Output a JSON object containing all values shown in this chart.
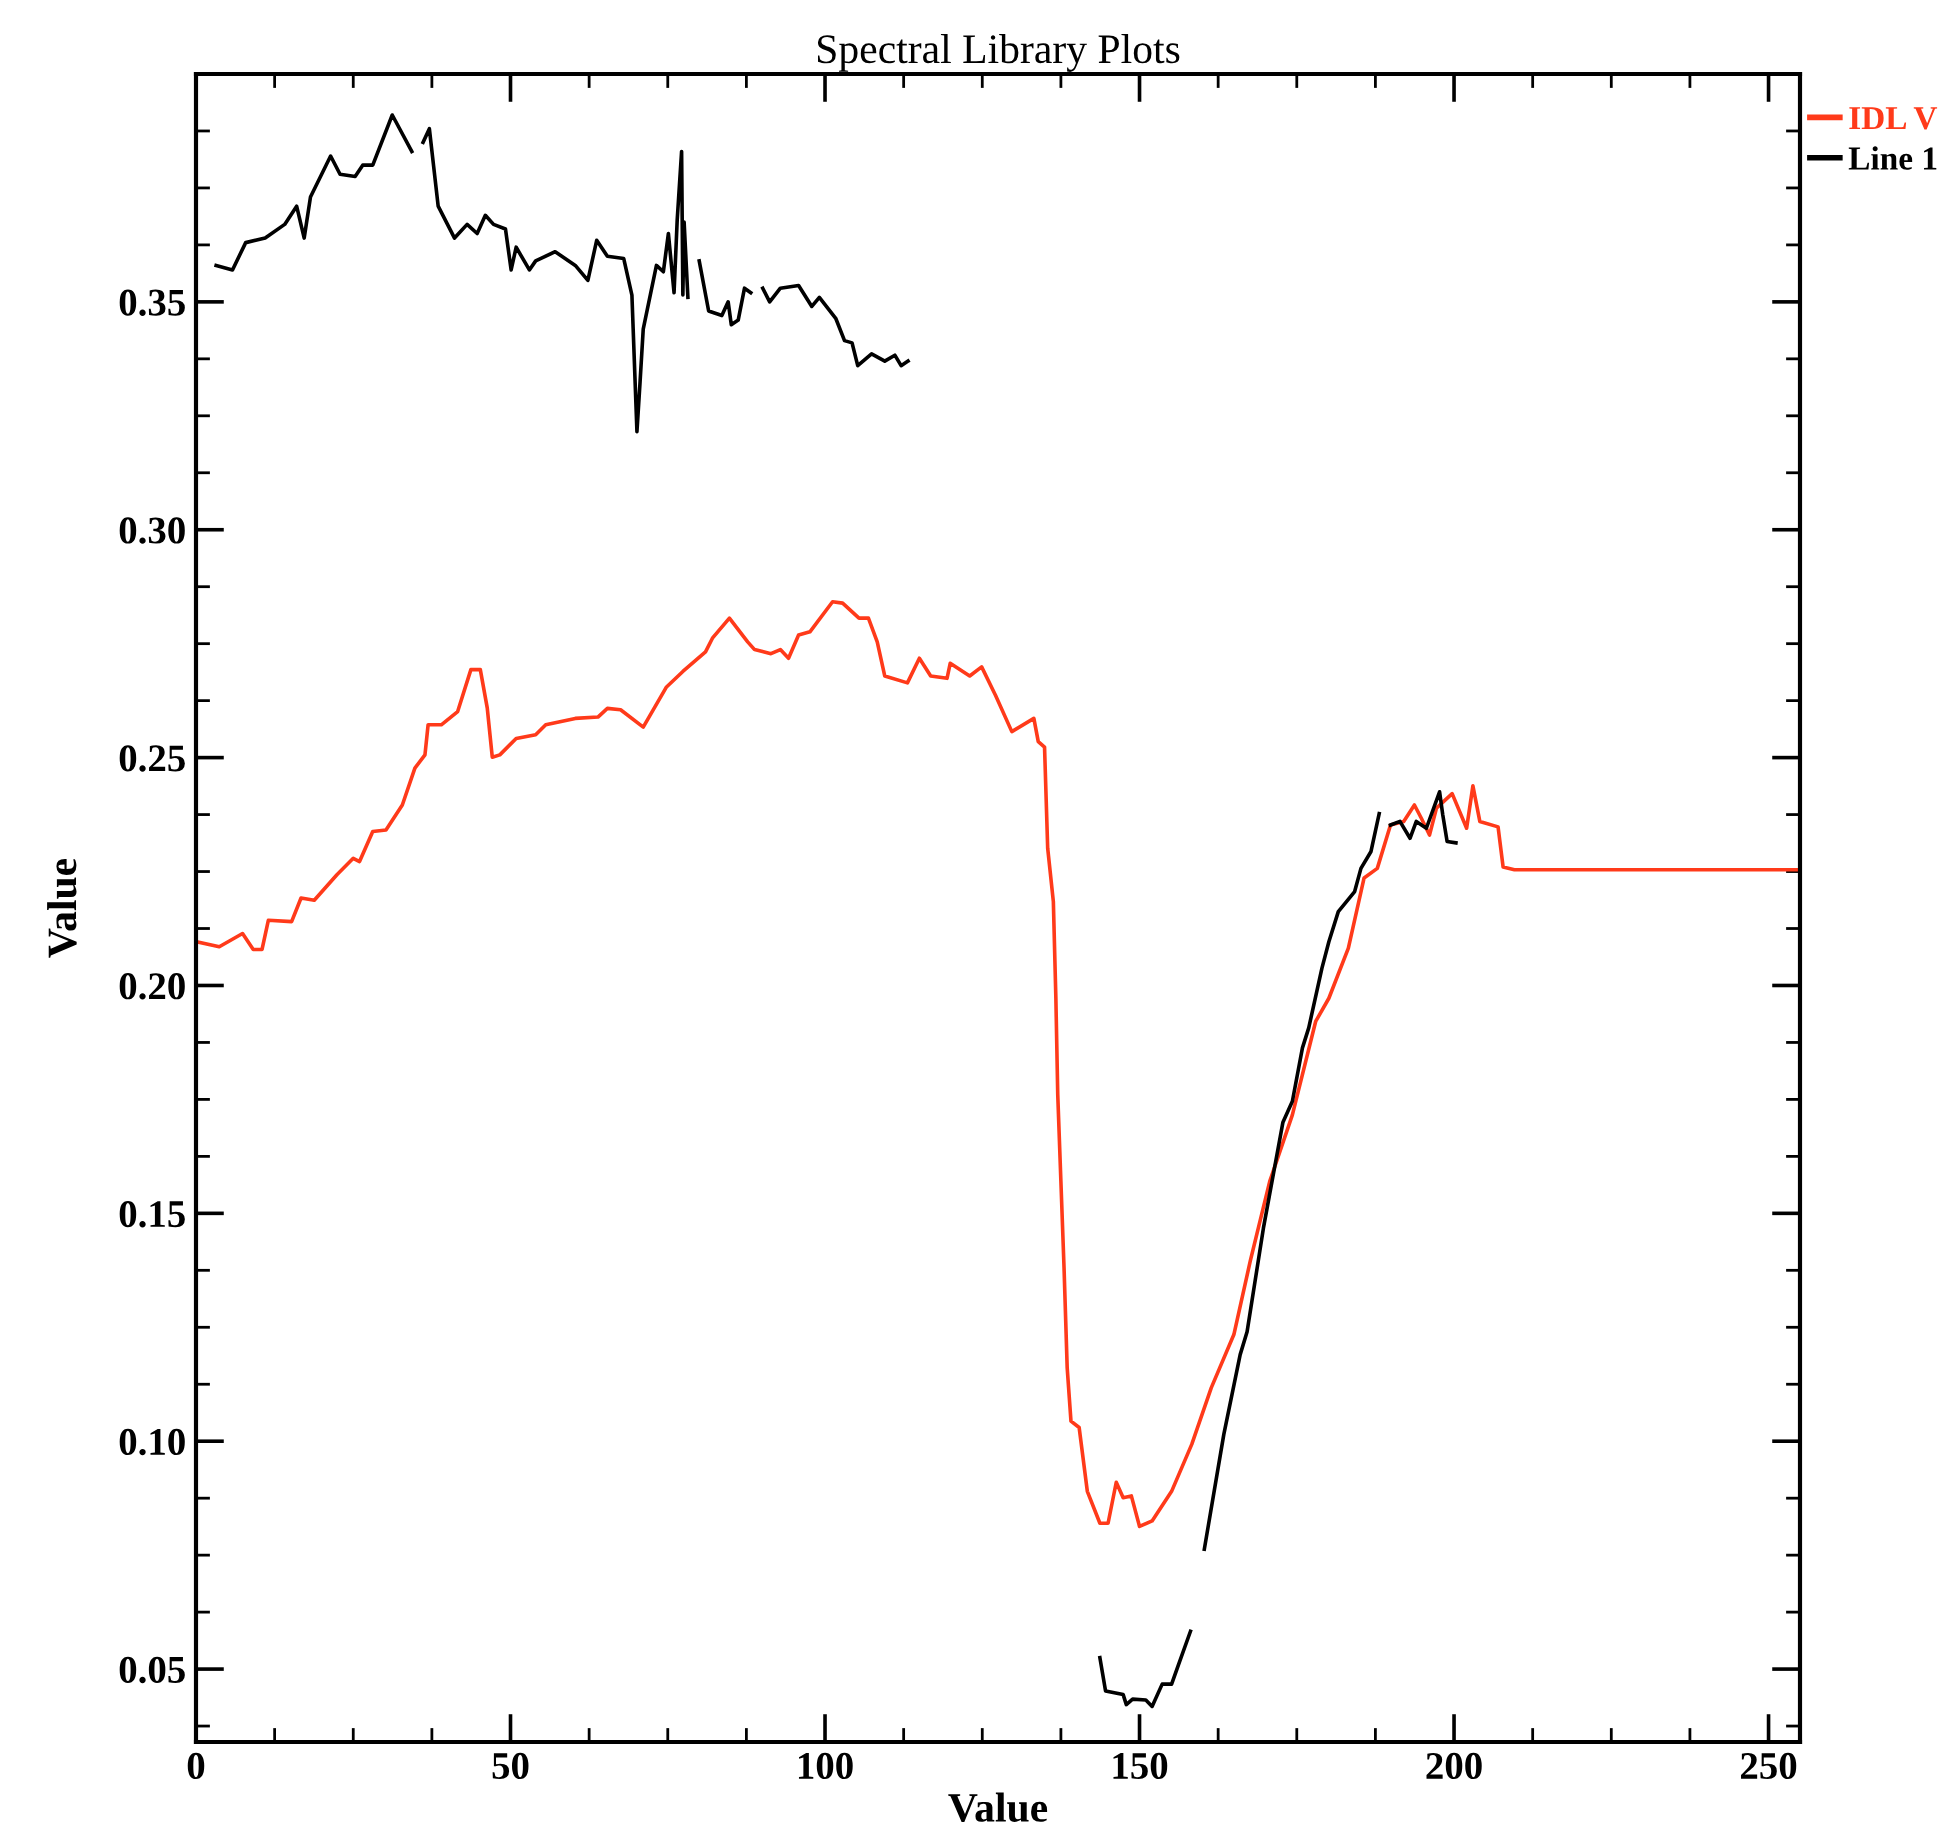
{
  "chart_data": {
    "type": "line",
    "title": "Spectral Library Plots",
    "xlabel": "Value",
    "ylabel": "Value",
    "xlim": [
      0,
      255
    ],
    "ylim": [
      0.034,
      0.4
    ],
    "xticks": [
      0,
      50,
      100,
      150,
      200,
      250
    ],
    "yticks": [
      0.05,
      {
        "value": 0.1,
        "label": "0.10"
      },
      0.15,
      {
        "value": 0.2,
        "label": "0.20"
      },
      0.25,
      {
        "value": 0.3,
        "label": "0.30"
      },
      0.35
    ],
    "grid": false,
    "legend": "right",
    "marker": "none",
    "line_style": "solid",
    "series": [
      {
        "name": "IDL V",
        "color": "#ff3a1a",
        "x": [
          0.1,
          3.7,
          7.4,
          9.1,
          10.5,
          11.5,
          15.2,
          16.7,
          18.8,
          22.4,
          25,
          26,
          28.1,
          30.2,
          32.8,
          34.8,
          36.4,
          36.9,
          39,
          41.6,
          43.7,
          45.2,
          46.3,
          47.1,
          48.3,
          50.9,
          54,
          55.6,
          60.3,
          63.9,
          65.4,
          67.5,
          71.1,
          74.8,
          77.4,
          81,
          82.1,
          84.8,
          87.7,
          88.8,
          91.4,
          92.9,
          94.2,
          95.8,
          97.6,
          101.2,
          102.8,
          105.4,
          106.9,
          108.3,
          109.5,
          113.1,
          115,
          116.8,
          119.4,
          119.9,
          123,
          124.9,
          127.1,
          129.7,
          133.2,
          133.9,
          134.9,
          135.4,
          136.3,
          136.7,
          137,
          137.5,
          138,
          138.5,
          139.1,
          140.4,
          141.7,
          143.7,
          145,
          146.3,
          147.4,
          148.7,
          150,
          152,
          155.1,
          158.3,
          161.4,
          165,
          167.6,
          170.7,
          174.3,
          178,
          180.1,
          183.2,
          185.7,
          187.8,
          189.9,
          192,
          193.7,
          194.8,
          196.1,
          197.2,
          199.7,
          202,
          203,
          204.1,
          207,
          207.8,
          209.6,
          255
        ],
        "values": [
          0.2096,
          0.2085,
          0.2114,
          0.2079,
          0.2079,
          0.2143,
          0.214,
          0.2192,
          0.2187,
          0.2243,
          0.2279,
          0.2272,
          0.2338,
          0.2341,
          0.2396,
          0.2477,
          0.2506,
          0.2572,
          0.2572,
          0.2601,
          0.2693,
          0.2693,
          0.2609,
          0.2501,
          0.2506,
          0.2542,
          0.255,
          0.2572,
          0.2586,
          0.2589,
          0.2608,
          0.2605,
          0.2567,
          0.2655,
          0.2689,
          0.2732,
          0.2762,
          0.2806,
          0.2754,
          0.2737,
          0.2728,
          0.2737,
          0.2718,
          0.2769,
          0.2776,
          0.2842,
          0.2839,
          0.2806,
          0.2806,
          0.2754,
          0.2679,
          0.2664,
          0.2718,
          0.2679,
          0.2674,
          0.2707,
          0.2679,
          0.2699,
          0.2637,
          0.2557,
          0.2586,
          0.2535,
          0.2523,
          0.2301,
          0.2184,
          0.1972,
          0.176,
          0.157,
          0.138,
          0.1161,
          0.1044,
          0.103,
          0.089,
          0.082,
          0.082,
          0.091,
          0.0876,
          0.088,
          0.0813,
          0.0825,
          0.089,
          0.0993,
          0.1117,
          0.1234,
          0.1395,
          0.157,
          0.1716,
          0.1921,
          0.1972,
          0.2082,
          0.2236,
          0.2257,
          0.2352,
          0.236,
          0.2396,
          0.2367,
          0.233,
          0.2389,
          0.2421,
          0.2345,
          0.2438,
          0.236,
          0.2348,
          0.226,
          0.2254,
          0.2254
        ]
      },
      {
        "name": "Line 1",
        "color": "#000000",
        "x": [
          3.2,
          5.8,
          7.9,
          11,
          14.1,
          16,
          17.2,
          18.2,
          21.4,
          22.9,
          25.3,
          26.5,
          28.1,
          31.2,
          34.3,
          35.2,
          36.1,
          37.1,
          38.5,
          41.1,
          43.1,
          44.7,
          46,
          47.3,
          49.2,
          50.1,
          50.9,
          53,
          54,
          57.1,
          60.3,
          62.3,
          63.7,
          65.4,
          68,
          69.3,
          70.1,
          70.6,
          71.1,
          73.2,
          74.3,
          75.1,
          76,
          76.5,
          77.2,
          77.4,
          77.6,
          78.2,
          79.1,
          80,
          81.5,
          83.6,
          84.6,
          85.1,
          86.2,
          87.2,
          88.2,
          89.1,
          90.1,
          91.2,
          92.9,
          95.8,
          97.9,
          99.1,
          101.7,
          103.1,
          104.3,
          105.2,
          107.4,
          109.5,
          111.1,
          112.1,
          113.2,
          128,
          143.7,
          144.6,
          147.4,
          147.9,
          148.9,
          151,
          152,
          153.6,
          155.1,
          156.2,
          158.1,
          159.2,
          160.3,
          163.4,
          166,
          167.1,
          169.7,
          172.8,
          174.3,
          175.9,
          176.9,
          179,
          180.1,
          181.6,
          184.2,
          185.2,
          186.8,
          188.1,
          189,
          189.9,
          191.4,
          193,
          194,
          195.6,
          197.7,
          198.2,
          198.9,
          200.3
        ],
        "values": [
          0.358,
          0.357,
          0.363,
          0.364,
          0.367,
          0.371,
          0.364,
          0.373,
          0.382,
          0.378,
          0.3775,
          0.38,
          0.38,
          0.391,
          0.383,
          null,
          0.385,
          0.388,
          0.371,
          0.364,
          0.367,
          0.365,
          0.369,
          0.367,
          0.366,
          0.357,
          0.362,
          0.357,
          0.359,
          0.361,
          0.358,
          0.3547,
          0.3635,
          0.36,
          0.3595,
          0.3515,
          0.3215,
          0.3325,
          0.344,
          0.358,
          0.3566,
          0.365,
          0.352,
          0.368,
          0.383,
          0.3515,
          0.3675,
          0.351,
          null,
          0.359,
          0.348,
          0.347,
          0.35,
          0.345,
          0.346,
          0.353,
          0.352,
          null,
          0.353,
          0.35,
          0.353,
          0.3536,
          0.349,
          0.351,
          0.3464,
          0.3415,
          0.341,
          0.336,
          0.3386,
          0.337,
          0.3383,
          0.336,
          0.337,
          null,
          0.0525,
          0.0452,
          0.0444,
          0.0422,
          0.0434,
          0.0432,
          0.0418,
          0.0467,
          0.0467,
          0.051,
          0.0583,
          null,
          0.0763,
          0.1015,
          0.119,
          0.124,
          0.1468,
          0.17,
          0.1746,
          0.1863,
          0.1907,
          0.2038,
          0.2096,
          0.2162,
          0.2206,
          0.2257,
          0.2294,
          0.2377,
          null,
          0.2352,
          0.236,
          0.2323,
          0.236,
          0.2345,
          0.2425,
          0.2375,
          0.2316,
          0.2313
        ]
      }
    ]
  }
}
